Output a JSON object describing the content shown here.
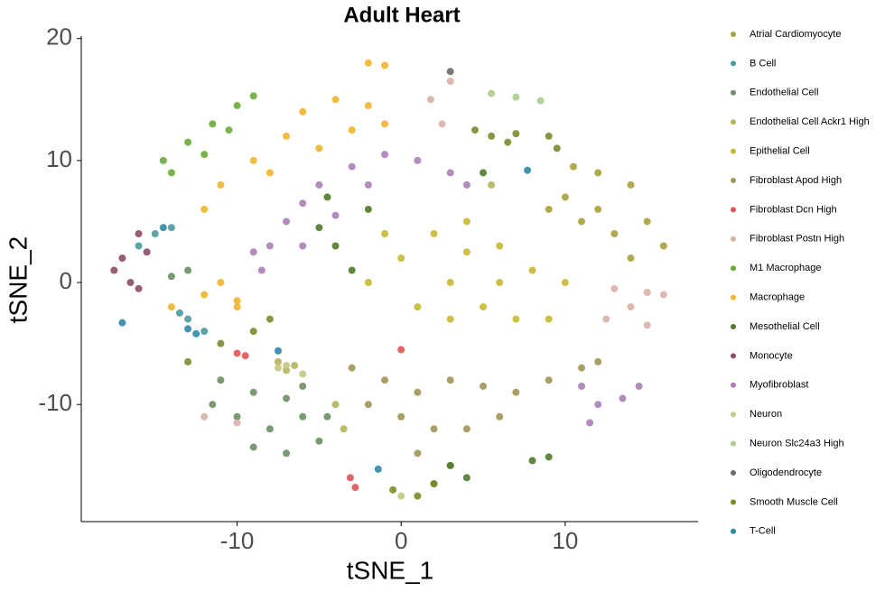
{
  "chart_data": {
    "type": "scatter",
    "title": "Adult Heart",
    "x_label": "tSNE_1",
    "y_label": "tSNE_2",
    "xlim": [
      -19.5,
      18.1
    ],
    "ylim": [
      -19.6,
      20.2
    ],
    "xticks": [
      -10,
      0,
      10
    ],
    "yticks": [
      -10,
      0,
      10,
      20
    ],
    "grid": false,
    "legend": "right",
    "series": [
      {
        "name": "Atrial Cardiomyocyte",
        "color": "#a9a13a",
        "x": [
          10,
          12,
          14,
          15,
          13,
          11,
          16,
          12,
          14,
          10.5,
          9
        ],
        "y": [
          7,
          9,
          8,
          5,
          4,
          5,
          3,
          6,
          2,
          9.5,
          6
        ]
      },
      {
        "name": "B Cell",
        "color": "#4b9aa0",
        "x": [
          -15,
          -13,
          -12,
          -13.5,
          -14,
          -16
        ],
        "y": [
          4,
          -3,
          -4,
          -2.5,
          4.5,
          3
        ]
      },
      {
        "name": "Endothelial Cell",
        "color": "#6a8f63",
        "x": [
          -11,
          -9,
          -7,
          -6,
          -8,
          -10,
          -5,
          -7,
          -9,
          -11.5,
          -6,
          -4.5,
          -14,
          -13
        ],
        "y": [
          -8,
          -9,
          -9.5,
          -11,
          -12,
          -11,
          -13,
          -14,
          -13.5,
          -10,
          -8.5,
          -11,
          0.5,
          1
        ]
      },
      {
        "name": "Endothelial Cell Ackr1 High",
        "color": "#b4b45a",
        "x": [
          -7.5,
          -6.5,
          -7,
          -4,
          -3.5,
          5.5
        ],
        "y": [
          -6.5,
          -6.8,
          -7.2,
          -10,
          -12,
          8
        ]
      },
      {
        "name": "Epithelial Cell",
        "color": "#c8b830",
        "x": [
          0,
          2,
          4,
          6,
          8,
          10,
          3,
          5,
          1,
          -2,
          7,
          9,
          -1,
          3,
          6,
          4
        ],
        "y": [
          2,
          4,
          5,
          3,
          1,
          0,
          0,
          -2,
          -2,
          0,
          -3,
          -3,
          4,
          -3,
          0,
          2.5
        ]
      },
      {
        "name": "Fibroblast Apod High",
        "color": "#a09555",
        "x": [
          -3,
          -1,
          1,
          3,
          5,
          7,
          9,
          11,
          12,
          0,
          2,
          4,
          -2,
          6,
          1,
          3
        ],
        "y": [
          -7,
          -8,
          -9,
          -8,
          -8.5,
          -9,
          -8,
          -7,
          -6.5,
          -11,
          -12,
          -12,
          -10,
          -11,
          -14,
          -15
        ]
      },
      {
        "name": "Fibroblast Dcn High",
        "color": "#e05555",
        "x": [
          -3.1,
          -2.8,
          -10,
          -9.5,
          0
        ],
        "y": [
          -16,
          -16.8,
          -5.8,
          -6,
          -5.5
        ]
      },
      {
        "name": "Fibroblast Postn High",
        "color": "#d9b0a8",
        "x": [
          13,
          15,
          16,
          14,
          12.5,
          15,
          1.8,
          2.5,
          3,
          -10,
          -12
        ],
        "y": [
          -0.5,
          -0.8,
          -1,
          -2,
          -3,
          -3.5,
          15,
          13,
          16.5,
          -11.5,
          -11
        ]
      },
      {
        "name": "M1 Macrophage",
        "color": "#6aab35",
        "x": [
          -14.5,
          -13,
          -11.5,
          -10,
          -9,
          -14,
          -12,
          -10.5
        ],
        "y": [
          10,
          11.5,
          13,
          14.5,
          15.3,
          9,
          10.5,
          12.5
        ]
      },
      {
        "name": "Macrophage",
        "color": "#f0b428",
        "x": [
          -11,
          -9,
          -7,
          -6,
          -4,
          -2,
          -1,
          -12,
          -8,
          -5,
          -3,
          -12,
          -14,
          -10,
          -11,
          -10,
          -2,
          -1
        ],
        "y": [
          8,
          10,
          12,
          14,
          15,
          14.5,
          13,
          6,
          9,
          11,
          12.5,
          -1,
          -2,
          -2,
          0,
          -1.5,
          18,
          17.8
        ]
      },
      {
        "name": "Mesothelial Cell",
        "color": "#4f7a2a",
        "x": [
          -4,
          -3,
          -5,
          -2,
          8,
          9,
          3,
          4,
          2,
          -4.5,
          5
        ],
        "y": [
          3,
          1,
          4.5,
          6,
          -14.6,
          -14.3,
          -15,
          -16,
          -16.5,
          7,
          9
        ]
      },
      {
        "name": "Monocyte",
        "color": "#8c4a68",
        "x": [
          -17,
          -16.5,
          -16,
          -15.5,
          -16,
          -17.5
        ],
        "y": [
          2,
          0,
          -0.5,
          2.5,
          4,
          1
        ]
      },
      {
        "name": "Myofibroblast",
        "color": "#a97fb5",
        "x": [
          -8.5,
          -8,
          -7,
          -6,
          -5,
          -3,
          -1,
          1,
          3,
          4,
          -9,
          -6,
          -4,
          -2,
          11,
          12,
          13.5,
          14.5,
          11.5
        ],
        "y": [
          1,
          3,
          5,
          6.5,
          8,
          9.5,
          10.5,
          10,
          9,
          8,
          2.5,
          3,
          5.5,
          8,
          -8.5,
          -10,
          -9.5,
          -8.5,
          -11.5
        ]
      },
      {
        "name": "Neuron",
        "color": "#c5c880",
        "x": [
          -7.5,
          -6,
          -7,
          0
        ],
        "y": [
          -7,
          -7.5,
          -6.8,
          -17.5
        ]
      },
      {
        "name": "Neuron Slc24a3 High",
        "color": "#a8cc90",
        "x": [
          5.5,
          7,
          8.5
        ],
        "y": [
          15.5,
          15.2,
          14.9
        ]
      },
      {
        "name": "Oligodendrocyte",
        "color": "#6a6a6a",
        "x": [
          3
        ],
        "y": [
          17.3
        ]
      },
      {
        "name": "Smooth Muscle Cell",
        "color": "#7a8c2a",
        "x": [
          4.5,
          5.5,
          6.5,
          7,
          9,
          9.5,
          -13,
          -11,
          -9,
          -8,
          -0.5,
          1,
          2
        ],
        "y": [
          12.5,
          12,
          11.5,
          12.2,
          12,
          11,
          -6.5,
          -5,
          -4,
          -3,
          -17,
          -17.5,
          -16.5
        ]
      },
      {
        "name": "T-Cell",
        "color": "#2a8aaa",
        "x": [
          -17,
          -13,
          -12.5,
          -14.5,
          -7.5,
          -1.4,
          7.7
        ],
        "y": [
          -3.3,
          -3.8,
          -4.2,
          4.5,
          -5.6,
          -15.3,
          9.2
        ]
      }
    ]
  }
}
